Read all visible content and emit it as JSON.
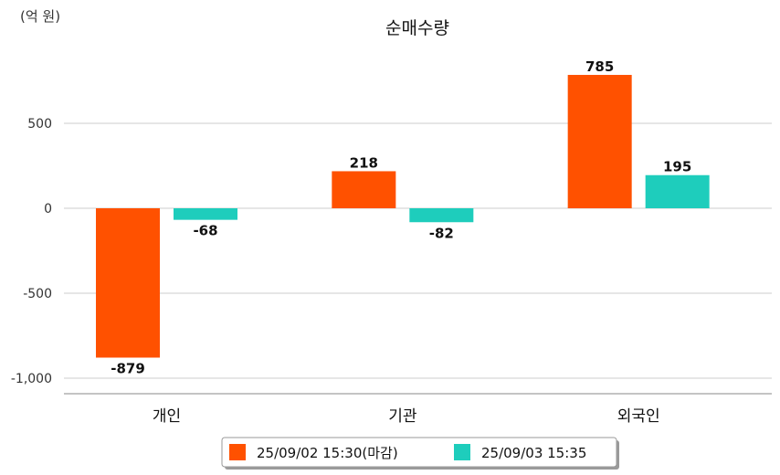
{
  "chart_data": {
    "type": "bar",
    "title": "순매수량",
    "unit_label": "(억 원)",
    "categories": [
      "개인",
      "기관",
      "외국인"
    ],
    "series": [
      {
        "name": "25/09/02 15:30(마감)",
        "values": [
          -879,
          218,
          785
        ],
        "color": "#ff5100"
      },
      {
        "name": "25/09/03 15:35",
        "values": [
          -68,
          -82,
          195
        ],
        "color": "#1ecdbc"
      }
    ],
    "y_ticks": [
      500,
      0,
      -500,
      -1000
    ],
    "y_tick_labels": [
      "500",
      "0",
      "-500",
      "-1,000"
    ],
    "data_labels": [
      [
        "-879",
        "218",
        "785"
      ],
      [
        "-68",
        "-82",
        "195"
      ]
    ],
    "ylim": [
      -1100,
      950
    ],
    "grid": true,
    "legend_position": "bottom"
  }
}
